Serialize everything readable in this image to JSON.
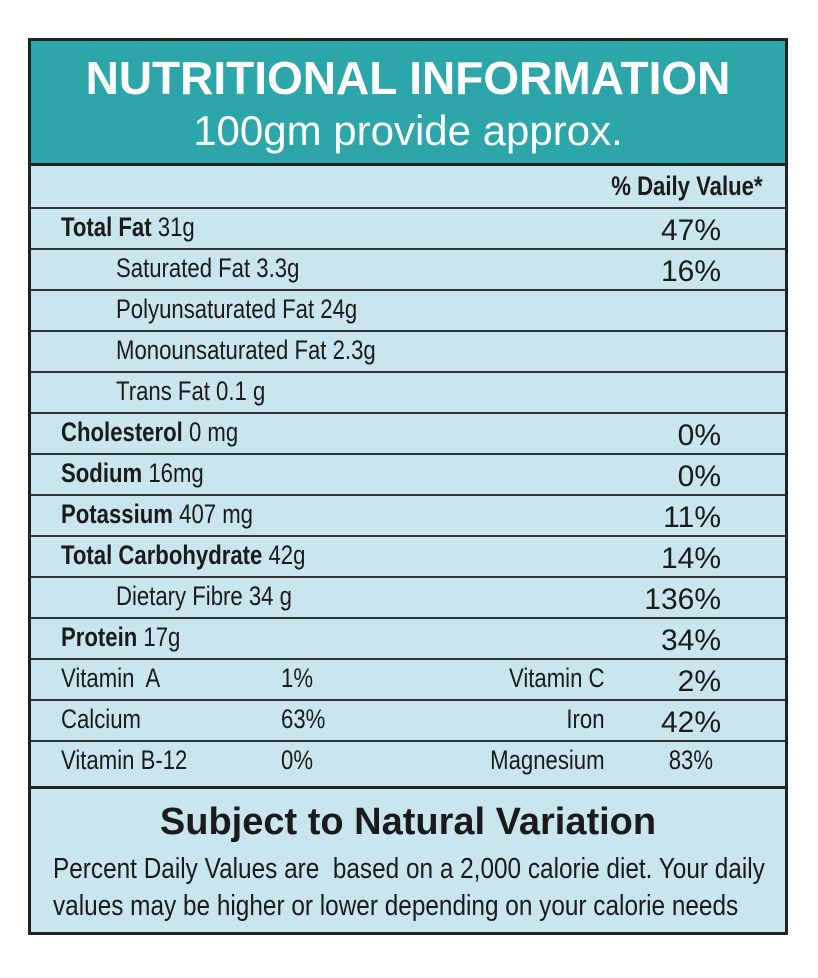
{
  "header": {
    "title": "NUTRITIONAL INFORMATION",
    "subtitle": "100gm provide approx."
  },
  "table": {
    "column_header": "% Daily Value*",
    "nutrients": [
      {
        "name": "Total Fat",
        "amount": "31g",
        "daily_value": "47%",
        "sub_rows": [
          {
            "label": "Saturated Fat 3.3g",
            "daily_value": "16%"
          },
          {
            "label": "Polyunsaturated Fat 24g"
          },
          {
            "label": "Monounsaturated Fat 2.3g"
          },
          {
            "label": "Trans Fat 0.1 g"
          }
        ]
      },
      {
        "name": "Cholesterol",
        "amount": "0 mg",
        "daily_value": "0%"
      },
      {
        "name": "Sodium",
        "amount": "16mg",
        "daily_value": "0%"
      },
      {
        "name": "Potassium",
        "amount": "407 mg",
        "daily_value": "11%"
      },
      {
        "name": "Total Carbohydrate",
        "amount": "42g",
        "daily_value": "14%",
        "sub_rows": [
          {
            "label": "Dietary Fibre 34 g",
            "daily_value": "136%"
          }
        ]
      },
      {
        "name": "Protein",
        "amount": "17g",
        "daily_value": "34%"
      }
    ],
    "vitamins": [
      [
        "Vitamin  A",
        "1%",
        "Vitamin C",
        "2%"
      ],
      [
        "Calcium",
        "63%",
        "Iron",
        "42%"
      ],
      [
        "Vitamin B-12",
        "0%",
        "Magnesium",
        "83%"
      ]
    ]
  },
  "footer": {
    "title": "Subject to Natural Variation",
    "lines": [
      "Percent Daily Values are  based on a 2,000 calorie diet. Your daily",
      "values may be higher or lower depending on your calorie needs"
    ]
  }
}
